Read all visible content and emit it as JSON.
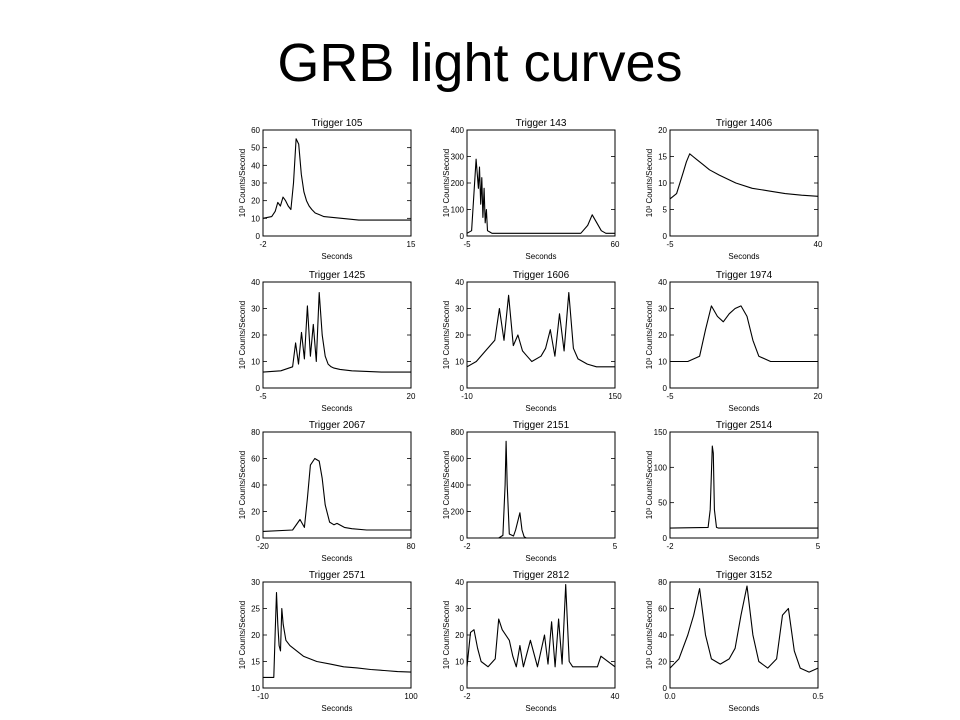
{
  "slide": {
    "title": "GRB light curves"
  },
  "panel_common": {
    "xlabel": "Seconds",
    "ylabel": "10³ Counts/Second"
  },
  "chart_data": [
    {
      "type": "line",
      "title": "Trigger 105",
      "xlabel": "Seconds",
      "ylabel": "10³ Counts/Second",
      "xlim": [
        -2,
        15
      ],
      "ylim": [
        0,
        60
      ],
      "xticks": [
        -2,
        15
      ],
      "yticks": [
        0,
        10,
        20,
        30,
        40,
        50,
        60
      ],
      "x": [
        -2,
        -1,
        -0.6,
        -0.3,
        0,
        0.3,
        0.6,
        0.9,
        1.2,
        1.5,
        1.8,
        2.1,
        2.4,
        2.7,
        3,
        3.3,
        3.6,
        4,
        4.5,
        5,
        6,
        7,
        8,
        9,
        10,
        12,
        15
      ],
      "y": [
        10,
        11,
        14,
        19,
        17,
        22,
        20,
        17,
        15,
        30,
        55,
        52,
        35,
        25,
        20,
        17,
        15,
        13,
        12,
        11,
        10.5,
        10,
        9.5,
        9,
        9,
        9,
        9
      ]
    },
    {
      "type": "line",
      "title": "Trigger 143",
      "xlabel": "Seconds",
      "ylabel": "10³ Counts/Second",
      "xlim": [
        -5,
        60
      ],
      "ylim": [
        0,
        400
      ],
      "xticks": [
        -5,
        60
      ],
      "yticks": [
        0,
        100,
        200,
        300,
        400
      ],
      "x": [
        -5,
        -3,
        -1,
        0,
        0.5,
        1,
        1.5,
        2,
        2.5,
        3,
        3.5,
        4,
        5,
        6,
        8,
        10,
        20,
        30,
        45,
        48,
        50,
        52,
        54,
        56,
        60
      ],
      "y": [
        10,
        20,
        290,
        180,
        260,
        120,
        220,
        70,
        180,
        50,
        100,
        20,
        15,
        10,
        10,
        10,
        10,
        10,
        10,
        40,
        80,
        50,
        20,
        10,
        10
      ]
    },
    {
      "type": "line",
      "title": "Trigger 1406",
      "xlabel": "Seconds",
      "ylabel": "10³ Counts/Second",
      "xlim": [
        -5,
        40
      ],
      "ylim": [
        0,
        20
      ],
      "xticks": [
        -5,
        40
      ],
      "yticks": [
        0,
        5,
        10,
        15,
        20
      ],
      "x": [
        -5,
        -3,
        -1,
        0,
        1,
        2,
        3,
        5,
        7,
        10,
        15,
        20,
        25,
        30,
        35,
        40
      ],
      "y": [
        7,
        8,
        12,
        14,
        15.5,
        15,
        14.5,
        13.5,
        12.5,
        11.5,
        10,
        9,
        8.5,
        8,
        7.7,
        7.5
      ]
    },
    {
      "type": "line",
      "title": "Trigger 1425",
      "xlabel": "Seconds",
      "ylabel": "10³ Counts/Second",
      "xlim": [
        -5,
        20
      ],
      "ylim": [
        0,
        40
      ],
      "xticks": [
        -5,
        20
      ],
      "yticks": [
        0,
        10,
        20,
        30,
        40
      ],
      "x": [
        -5,
        -2,
        0,
        0.5,
        1,
        1.5,
        2,
        2.5,
        3,
        3.5,
        4,
        4.5,
        5,
        5.5,
        6,
        6.5,
        7,
        8,
        10,
        15,
        20
      ],
      "y": [
        6,
        6.5,
        8,
        17,
        9,
        21,
        11,
        31,
        12,
        24,
        10,
        36,
        20,
        12,
        9,
        8,
        7.5,
        7,
        6.5,
        6,
        6
      ]
    },
    {
      "type": "line",
      "title": "Trigger 1606",
      "xlabel": "Seconds",
      "ylabel": "10³ Counts/Second",
      "xlim": [
        -10,
        150
      ],
      "ylim": [
        0,
        40
      ],
      "xticks": [
        -10,
        150
      ],
      "yticks": [
        0,
        10,
        20,
        30,
        40
      ],
      "x": [
        -10,
        0,
        10,
        20,
        25,
        30,
        35,
        40,
        45,
        50,
        55,
        60,
        70,
        75,
        80,
        85,
        90,
        95,
        100,
        105,
        110,
        120,
        130,
        150
      ],
      "y": [
        8,
        10,
        14,
        18,
        30,
        18,
        35,
        16,
        20,
        14,
        12,
        10,
        12,
        15,
        22,
        12,
        28,
        14,
        36,
        15,
        11,
        9,
        8,
        8
      ]
    },
    {
      "type": "line",
      "title": "Trigger 1974",
      "xlabel": "Seconds",
      "ylabel": "10³ Counts/Second",
      "xlim": [
        -5,
        20
      ],
      "ylim": [
        0,
        40
      ],
      "xticks": [
        -5,
        20
      ],
      "yticks": [
        0,
        10,
        20,
        30,
        40
      ],
      "x": [
        -5,
        -2,
        0,
        1,
        2,
        3,
        4,
        5,
        6,
        7,
        8,
        9,
        10,
        12,
        15,
        20
      ],
      "y": [
        10,
        10,
        12,
        22,
        31,
        27,
        25,
        28,
        30,
        31,
        27,
        18,
        12,
        10,
        10,
        10
      ]
    },
    {
      "type": "line",
      "title": "Trigger 2067",
      "xlabel": "Seconds",
      "ylabel": "10³ Counts/Second",
      "xlim": [
        -20,
        80
      ],
      "ylim": [
        0,
        80
      ],
      "xticks": [
        -20,
        80
      ],
      "yticks": [
        0,
        20,
        40,
        60,
        80
      ],
      "x": [
        -20,
        0,
        5,
        8,
        10,
        12,
        15,
        18,
        20,
        22,
        25,
        28,
        30,
        35,
        40,
        50,
        60,
        80
      ],
      "y": [
        5,
        6,
        14,
        8,
        30,
        55,
        60,
        58,
        45,
        25,
        12,
        10,
        11,
        8,
        7,
        6,
        6,
        6
      ]
    },
    {
      "type": "line",
      "title": "Trigger 2151",
      "xlabel": "Seconds",
      "ylabel": "10³ Counts/Second",
      "xlim": [
        -2,
        5
      ],
      "ylim": [
        0,
        800
      ],
      "xticks": [
        -2,
        5
      ],
      "yticks": [
        0,
        200,
        400,
        600,
        800
      ],
      "x": [
        -2,
        -0.5,
        -0.3,
        -0.2,
        -0.15,
        -0.1,
        0,
        0.2,
        0.3,
        0.5,
        0.6,
        0.7,
        0.8,
        1,
        2,
        5
      ],
      "y": [
        0,
        0,
        20,
        400,
        730,
        400,
        30,
        15,
        60,
        190,
        60,
        10,
        0,
        0,
        0,
        0
      ]
    },
    {
      "type": "line",
      "title": "Trigger 2514",
      "xlabel": "Seconds",
      "ylabel": "10³ Counts/Second",
      "xlim": [
        -2,
        5
      ],
      "ylim": [
        0,
        150
      ],
      "xticks": [
        -2,
        5
      ],
      "yticks": [
        0,
        50,
        100,
        150
      ],
      "x": [
        -2,
        -0.2,
        -0.1,
        0,
        0.05,
        0.1,
        0.2,
        0.3,
        1,
        5
      ],
      "y": [
        14,
        15,
        40,
        130,
        120,
        40,
        15,
        14,
        14,
        14
      ]
    },
    {
      "type": "line",
      "title": "Trigger 2571",
      "xlabel": "Seconds",
      "ylabel": "10³ Counts/Second",
      "xlim": [
        -10,
        100
      ],
      "ylim": [
        10,
        30
      ],
      "xticks": [
        -10,
        100
      ],
      "yticks": [
        10,
        15,
        20,
        25,
        30
      ],
      "x": [
        -10,
        -5,
        -2,
        -1,
        0,
        1,
        2,
        3,
        4,
        5,
        7,
        10,
        20,
        30,
        40,
        50,
        60,
        70,
        80,
        90,
        100
      ],
      "y": [
        12,
        12,
        12,
        20,
        28,
        22,
        18,
        17,
        25,
        22,
        19,
        18,
        16,
        15,
        14.5,
        14,
        13.8,
        13.5,
        13.3,
        13.1,
        13
      ]
    },
    {
      "type": "line",
      "title": "Trigger 2812",
      "xlabel": "Seconds",
      "ylabel": "10³ Counts/Second",
      "xlim": [
        -2,
        40
      ],
      "ylim": [
        0,
        40
      ],
      "xticks": [
        -2,
        40
      ],
      "yticks": [
        0,
        10,
        20,
        30,
        40
      ],
      "x": [
        -2,
        -1,
        0,
        1,
        2,
        4,
        6,
        7,
        8,
        10,
        11,
        12,
        13,
        14,
        16,
        18,
        20,
        21,
        22,
        23,
        24,
        25,
        26,
        27,
        28,
        30,
        35,
        36,
        40
      ],
      "y": [
        8,
        21,
        22,
        15,
        10,
        8,
        11,
        26,
        22,
        18,
        12,
        8,
        16,
        8,
        18,
        8,
        20,
        9,
        25,
        8,
        26,
        9,
        39,
        10,
        8,
        8,
        8,
        12,
        8
      ]
    },
    {
      "type": "line",
      "title": "Trigger 3152",
      "xlabel": "Seconds",
      "ylabel": "10³ Counts/Second",
      "xlim": [
        0,
        0.5
      ],
      "ylim": [
        0,
        80
      ],
      "xticks": [
        "0.0",
        "0.5"
      ],
      "yticks": [
        0,
        20,
        40,
        60,
        80
      ],
      "x": [
        0,
        0.03,
        0.06,
        0.08,
        0.1,
        0.12,
        0.14,
        0.17,
        0.2,
        0.22,
        0.24,
        0.26,
        0.28,
        0.3,
        0.33,
        0.36,
        0.38,
        0.4,
        0.42,
        0.44,
        0.47,
        0.5
      ],
      "y": [
        15,
        22,
        40,
        55,
        75,
        40,
        22,
        18,
        22,
        30,
        55,
        77,
        40,
        20,
        15,
        22,
        55,
        60,
        28,
        15,
        12,
        15
      ]
    }
  ]
}
